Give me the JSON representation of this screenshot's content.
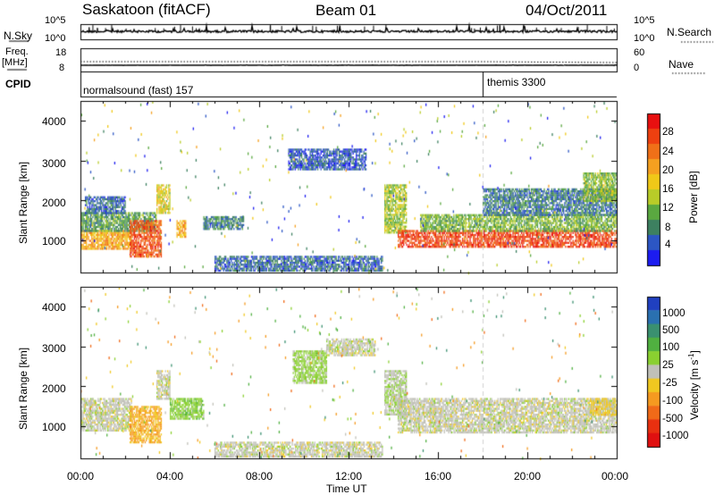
{
  "header": {
    "station": "Saskatoon (fitACF)",
    "beam": "Beam 01",
    "date": "04/Oct/2011"
  },
  "top_panels": {
    "nsky_label": "N.Sky",
    "nsky_ticks": [
      "10^5",
      "10^0"
    ],
    "nsearch_label": "N.Search",
    "nsearch_ticks": [
      "10^5",
      "10^0"
    ],
    "freq_label": "Freq.",
    "freq_unit": "[MHz]",
    "freq_ticks": [
      "18",
      "8"
    ],
    "nave_label": "Nave",
    "nave_ticks": [
      "60",
      "0"
    ],
    "cpid_label": "CPID",
    "cpid_modes": [
      {
        "text": "normalsound (fast) 157",
        "start_hour": 0
      },
      {
        "text": "themis 3300",
        "start_hour": 18
      }
    ]
  },
  "power_panel": {
    "ylabel": "Slant Range [km]",
    "yticks": [
      "1000",
      "2000",
      "3000",
      "4000"
    ],
    "colorbar_label": "Power [dB]",
    "colorbar_ticks": [
      "4",
      "8",
      "12",
      "16",
      "20",
      "24",
      "28"
    ],
    "colors": [
      "#1c1cf0",
      "#2c56c4",
      "#3d8060",
      "#5aa840",
      "#b8cc28",
      "#f0c818",
      "#f5a020",
      "#f07018",
      "#ee4010",
      "#e81010"
    ]
  },
  "velocity_panel": {
    "ylabel": "Slant Range [km]",
    "yticks": [
      "1000",
      "2000",
      "3000",
      "4000"
    ],
    "colorbar_label": "Velocity [m s",
    "colorbar_label_sup": "-1",
    "colorbar_label_end": "]",
    "colorbar_ticks": [
      "1000",
      "500",
      "100",
      "25",
      "-25",
      "-100",
      "-500",
      "-1000"
    ],
    "colors": [
      "#2040c0",
      "#2a70b0",
      "#3a9070",
      "#50b040",
      "#8ad030",
      "#c0c0b8",
      "#f0c820",
      "#f59a20",
      "#f06a18",
      "#e83010",
      "#e01010"
    ]
  },
  "xaxis": {
    "label": "Time UT",
    "ticks": [
      "00:00",
      "04:00",
      "08:00",
      "12:00",
      "16:00",
      "20:00",
      "00:00"
    ]
  },
  "chart_data": [
    {
      "type": "line",
      "title": "N.Sky / N.Search",
      "x_range_hours": [
        0,
        24
      ],
      "series": [
        {
          "name": "N.Sky",
          "style": "solid"
        },
        {
          "name": "N.Search",
          "style": "dotted"
        }
      ]
    },
    {
      "type": "line",
      "title": "Freq. / Nave",
      "x_range_hours": [
        0,
        24
      ],
      "series": [
        {
          "name": "Freq.",
          "style": "solid",
          "approx_value_mhz": 11.5
        },
        {
          "name": "Nave",
          "style": "dotted",
          "approx_value": 22
        }
      ]
    },
    {
      "type": "heatmap",
      "title": "Power [dB]",
      "x_range_hours": [
        0,
        24
      ],
      "ylim_km": [
        180,
        4500
      ],
      "color_range_db": [
        0,
        32
      ],
      "regions": [
        {
          "t0": 0.0,
          "t1": 2.3,
          "r0": 800,
          "r1": 1250,
          "value": 20
        },
        {
          "t0": 0.0,
          "t1": 3.4,
          "r0": 1250,
          "r1": 1700,
          "value": 10
        },
        {
          "t0": 0.2,
          "t1": 2.0,
          "r0": 1700,
          "r1": 2100,
          "value": 6
        },
        {
          "t0": 2.2,
          "t1": 3.6,
          "r0": 600,
          "r1": 1500,
          "value": 26
        },
        {
          "t0": 3.4,
          "t1": 4.0,
          "r0": 1700,
          "r1": 2400,
          "value": 16
        },
        {
          "t0": 4.3,
          "t1": 4.7,
          "r0": 1100,
          "r1": 1500,
          "value": 20
        },
        {
          "t0": 5.5,
          "t1": 7.3,
          "r0": 1300,
          "r1": 1600,
          "value": 8
        },
        {
          "t0": 6.0,
          "t1": 13.5,
          "r0": 250,
          "r1": 600,
          "value": 6
        },
        {
          "t0": 9.3,
          "t1": 12.8,
          "r0": 2800,
          "r1": 3300,
          "value": 5
        },
        {
          "t0": 13.6,
          "t1": 14.6,
          "r0": 1200,
          "r1": 2400,
          "value": 14
        },
        {
          "t0": 14.2,
          "t1": 24.0,
          "r0": 850,
          "r1": 1250,
          "value": 27
        },
        {
          "t0": 15.2,
          "t1": 24.0,
          "r0": 1250,
          "r1": 1650,
          "value": 12
        },
        {
          "t0": 18.0,
          "t1": 24.0,
          "r0": 1650,
          "r1": 2300,
          "value": 7
        },
        {
          "t0": 22.5,
          "t1": 24.0,
          "r0": 2000,
          "r1": 2700,
          "value": 13
        }
      ]
    },
    {
      "type": "heatmap",
      "title": "Velocity [m s-1]",
      "x_range_hours": [
        0,
        24
      ],
      "ylim_km": [
        180,
        4500
      ],
      "color_range_ms": [
        -1000,
        1000
      ],
      "regions": [
        {
          "t0": 0.0,
          "t1": 2.3,
          "r0": 900,
          "r1": 1700,
          "value": 0
        },
        {
          "t0": 2.2,
          "t1": 3.6,
          "r0": 600,
          "r1": 1500,
          "value": -300
        },
        {
          "t0": 3.4,
          "t1": 4.0,
          "r0": 1700,
          "r1": 2400,
          "value": 0
        },
        {
          "t0": 4.0,
          "t1": 5.5,
          "r0": 1200,
          "r1": 1700,
          "value": 200
        },
        {
          "t0": 6.0,
          "t1": 13.5,
          "r0": 250,
          "r1": 600,
          "value": 0
        },
        {
          "t0": 9.5,
          "t1": 11.0,
          "r0": 2100,
          "r1": 2900,
          "value": 150
        },
        {
          "t0": 11.0,
          "t1": 13.2,
          "r0": 2800,
          "r1": 3200,
          "value": 0
        },
        {
          "t0": 13.6,
          "t1": 14.6,
          "r0": 1300,
          "r1": 2400,
          "value": 60
        },
        {
          "t0": 14.2,
          "t1": 24.0,
          "r0": 850,
          "r1": 1700,
          "value": 0
        },
        {
          "t0": 22.8,
          "t1": 24.0,
          "r0": 1300,
          "r1": 1700,
          "value": -150
        }
      ]
    }
  ]
}
